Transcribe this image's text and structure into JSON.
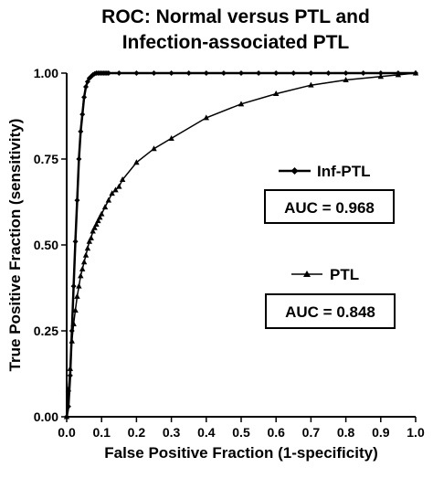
{
  "chart_data": {
    "type": "line",
    "title_line1": "ROC: Normal versus PTL and",
    "title_line2": "Infection-associated PTL",
    "xlabel": "False Positive Fraction (1-specificity)",
    "ylabel": "True Positive Fraction (sensitivity)",
    "xlim": [
      0.0,
      1.0
    ],
    "ylim": [
      0.0,
      1.0
    ],
    "x_ticks": [
      "0.0",
      "0.1",
      "0.2",
      "0.3",
      "0.4",
      "0.5",
      "0.6",
      "0.7",
      "0.8",
      "0.9",
      "1.0"
    ],
    "y_ticks": [
      "0.00",
      "0.25",
      "0.50",
      "0.75",
      "1.00"
    ],
    "grid": false,
    "series": [
      {
        "name": "Inf-PTL",
        "marker": "diamond",
        "auc_label": "AUC = 0.968",
        "x": [
          0.0,
          0.005,
          0.01,
          0.015,
          0.02,
          0.025,
          0.03,
          0.035,
          0.04,
          0.045,
          0.05,
          0.055,
          0.06,
          0.065,
          0.07,
          0.075,
          0.08,
          0.085,
          0.09,
          0.095,
          0.1,
          0.105,
          0.11,
          0.115,
          0.12,
          0.15,
          0.2,
          0.25,
          0.3,
          0.35,
          0.4,
          0.45,
          0.5,
          0.55,
          0.6,
          0.65,
          0.7,
          0.75,
          0.8,
          0.85,
          0.9,
          0.95,
          1.0
        ],
        "y": [
          0.0,
          0.03,
          0.12,
          0.25,
          0.38,
          0.51,
          0.63,
          0.75,
          0.83,
          0.88,
          0.93,
          0.96,
          0.975,
          0.985,
          0.99,
          0.995,
          0.998,
          1.0,
          1.0,
          1.0,
          1.0,
          1.0,
          1.0,
          1.0,
          1.0,
          1.0,
          1.0,
          1.0,
          1.0,
          1.0,
          1.0,
          1.0,
          1.0,
          1.0,
          1.0,
          1.0,
          1.0,
          1.0,
          1.0,
          1.0,
          1.0,
          1.0,
          1.0
        ]
      },
      {
        "name": "PTL",
        "marker": "triangle",
        "auc_label": "AUC = 0.848",
        "x": [
          0.0,
          0.005,
          0.01,
          0.015,
          0.02,
          0.025,
          0.03,
          0.035,
          0.04,
          0.045,
          0.05,
          0.055,
          0.06,
          0.065,
          0.07,
          0.075,
          0.08,
          0.085,
          0.09,
          0.095,
          0.1,
          0.11,
          0.12,
          0.13,
          0.14,
          0.15,
          0.16,
          0.2,
          0.25,
          0.3,
          0.4,
          0.5,
          0.6,
          0.7,
          0.8,
          0.9,
          0.95,
          1.0
        ],
        "y": [
          0.0,
          0.08,
          0.14,
          0.22,
          0.27,
          0.31,
          0.35,
          0.38,
          0.41,
          0.43,
          0.45,
          0.47,
          0.49,
          0.51,
          0.52,
          0.54,
          0.55,
          0.56,
          0.57,
          0.58,
          0.59,
          0.61,
          0.63,
          0.65,
          0.66,
          0.67,
          0.69,
          0.74,
          0.78,
          0.81,
          0.87,
          0.91,
          0.94,
          0.965,
          0.98,
          0.99,
          0.995,
          1.0
        ]
      }
    ]
  }
}
